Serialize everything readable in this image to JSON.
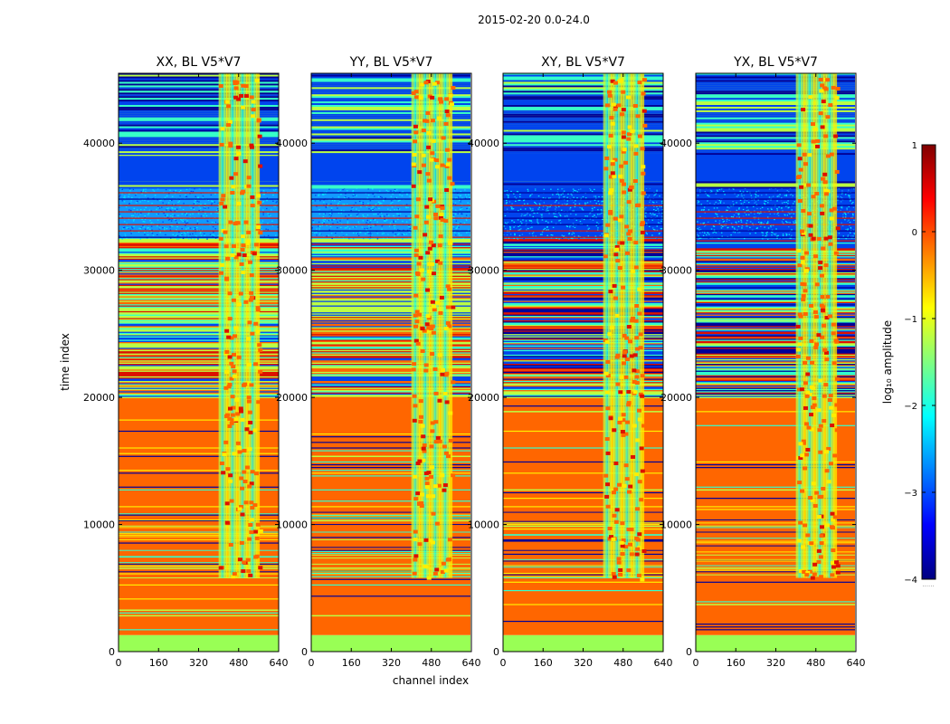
{
  "figure_title": "2015-02-20 0.0-24.0",
  "colors": {
    "background": "#ffffff",
    "axis": "#000000",
    "base_orange": "#ff6600",
    "bottom_band": "#99ff55",
    "line_green": "#bbff44",
    "line_cyan": "#33ffcc",
    "line_blue": "#0044ee",
    "line_navy": "#000099",
    "line_red": "#dd1100",
    "line_yellow": "#ffee00",
    "speckle_blue": "#1199ff",
    "speckle_cyan": "#00e5ff"
  },
  "chart_data": {
    "type": "heatmap",
    "description_text": "dynamic spectra of log10 amplitude vs channel and time",
    "x_label": "channel index",
    "y_label": "time index",
    "x_range": [
      0,
      640
    ],
    "y_range": [
      0,
      45500
    ],
    "x_ticks": [
      "0",
      "160",
      "320",
      "480",
      "640"
    ],
    "y_ticks": [
      "0",
      "10000",
      "20000",
      "30000",
      "40000"
    ],
    "y_tick_values": [
      0,
      10000,
      20000,
      30000,
      40000
    ],
    "x_tick_values": [
      0,
      160,
      320,
      480,
      640
    ],
    "panels": [
      {
        "title": "XX, BL V5*V7",
        "label_visible": true
      },
      {
        "title": "YY, BL V5*V7",
        "label_visible": true
      },
      {
        "title": "XY, BL V5*V7",
        "label_visible": true
      },
      {
        "title": "YX, BL V5*V7",
        "label_visible": true
      }
    ],
    "colorbar": {
      "label": "log₁₀ amplitude",
      "ticks": [
        "1",
        "0",
        "−1",
        "−2",
        "−3",
        "−4"
      ],
      "tick_values": [
        1,
        0,
        -1,
        -2,
        -3,
        -4
      ],
      "range": [
        -4,
        1
      ],
      "colormap": "jet",
      "stops": [
        "#000080",
        "#0000ff",
        "#0080ff",
        "#00ffff",
        "#80ff80",
        "#ffff00",
        "#ff8000",
        "#ff0000",
        "#800000"
      ]
    },
    "time_segments": [
      {
        "from": 0,
        "to": 1300,
        "kind": "green_band"
      },
      {
        "from": 1300,
        "to": 20000,
        "kind": "orange_lines"
      },
      {
        "from": 20000,
        "to": 32500,
        "kind": "cyan_green_mix"
      },
      {
        "from": 32500,
        "to": 36500,
        "kind": "blue_speckle"
      },
      {
        "from": 36500,
        "to": 45500,
        "kind": "green_blue_lines"
      }
    ],
    "rfi_channel_band": [
      400,
      560
    ]
  }
}
